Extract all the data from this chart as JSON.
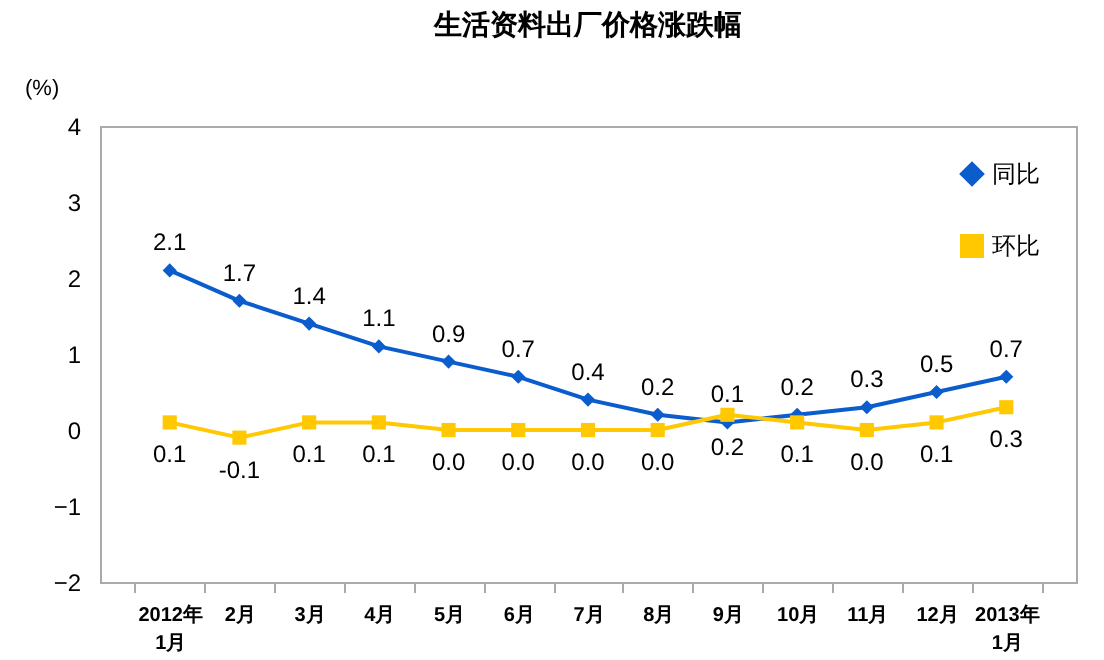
{
  "chart_data": {
    "type": "line",
    "title": "生活资料出厂价格涨跌幅",
    "ylabel": "(%)",
    "categories": [
      "2012年\n1月",
      "2月",
      "3月",
      "4月",
      "5月",
      "6月",
      "7月",
      "8月",
      "9月",
      "10月",
      "11月",
      "12月",
      "2013年\n1月"
    ],
    "series": [
      {
        "name": "同比",
        "color": "#0b5ccc",
        "marker": "diamond",
        "values": [
          2.1,
          1.7,
          1.4,
          1.1,
          0.9,
          0.7,
          0.4,
          0.2,
          0.1,
          0.2,
          0.3,
          0.5,
          0.7
        ],
        "value_labels": [
          "2.1",
          "1.7",
          "1.4",
          "1.1",
          "0.9",
          "0.7",
          "0.4",
          "0.2",
          "0.1",
          "0.2",
          "0.3",
          "0.5",
          "0.7"
        ]
      },
      {
        "name": "环比",
        "color": "#ffc800",
        "marker": "square",
        "values": [
          0.1,
          -0.1,
          0.1,
          0.1,
          0.0,
          0.0,
          0.0,
          0.0,
          0.2,
          0.1,
          0.0,
          0.1,
          0.3
        ],
        "value_labels": [
          "0.1",
          "-0.1",
          "0.1",
          "0.1",
          "0.0",
          "0.0",
          "0.0",
          "0.0",
          "0.2",
          "0.1",
          "0.0",
          "0.1",
          "0.3"
        ]
      }
    ],
    "ylim": [
      -2,
      4
    ],
    "yticks": [
      -2,
      -1,
      0,
      1,
      2,
      3,
      4
    ],
    "grid": false,
    "legend": "top right",
    "line_style": "solid"
  }
}
